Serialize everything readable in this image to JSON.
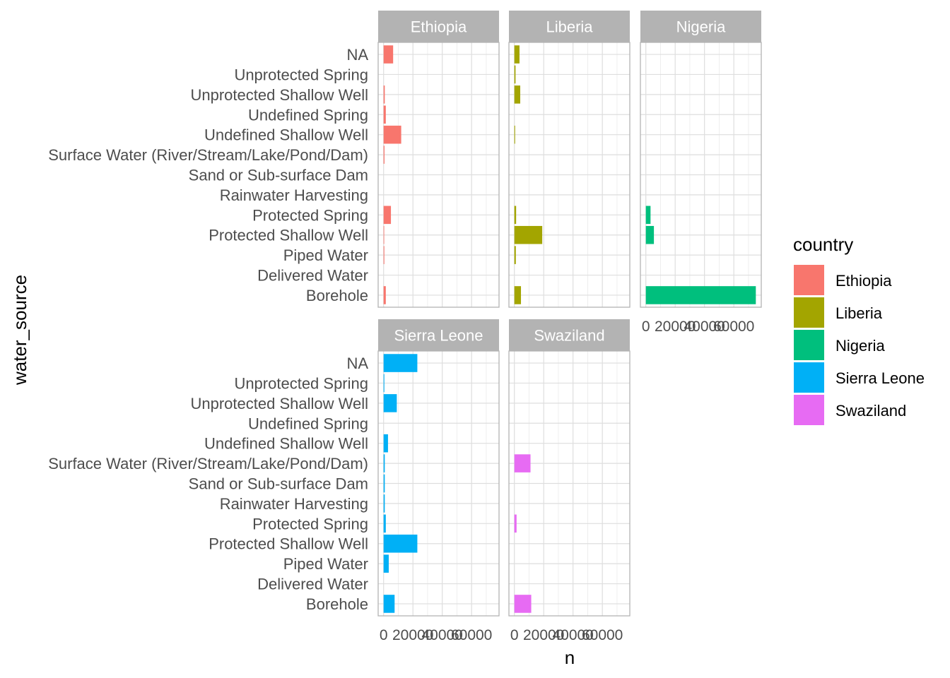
{
  "chart_data": {
    "type": "bar",
    "orientation": "horizontal",
    "facet_by": "country",
    "xlabel": "n",
    "ylabel": "water_source",
    "xlim": [
      0,
      75000
    ],
    "x_ticks": [
      0,
      20000,
      40000,
      60000
    ],
    "x_tick_labels": [
      "0",
      "20000",
      "40000",
      "60000"
    ],
    "grid": true,
    "legend_position": "right",
    "categories": [
      "Borehole",
      "Delivered Water",
      "Piped Water",
      "Protected Shallow Well",
      "Protected Spring",
      "Rainwater Harvesting",
      "Sand or Sub-surface Dam",
      "Surface Water (River/Stream/Lake/Pond/Dam)",
      "Undefined Shallow Well",
      "Undefined Spring",
      "Unprotected Shallow Well",
      "Unprotected Spring",
      "NA"
    ],
    "legend": {
      "title": "country",
      "items": [
        {
          "label": "Ethiopia",
          "color": "#F8766D"
        },
        {
          "label": "Liberia",
          "color": "#A3A500"
        },
        {
          "label": "Nigeria",
          "color": "#00BF7D"
        },
        {
          "label": "Sierra Leone",
          "color": "#00B0F6"
        },
        {
          "label": "Swaziland",
          "color": "#E76BF3"
        }
      ]
    },
    "series": [
      {
        "name": "Ethiopia",
        "color": "#F8766D",
        "values": [
          1500,
          0,
          500,
          400,
          5000,
          0,
          0,
          600,
          12000,
          1500,
          800,
          0,
          6500
        ]
      },
      {
        "name": "Liberia",
        "color": "#A3A500",
        "values": [
          4500,
          0,
          1000,
          19000,
          1200,
          0,
          0,
          0,
          500,
          0,
          4000,
          800,
          3500
        ]
      },
      {
        "name": "Nigeria",
        "color": "#00BF7D",
        "values": [
          75000,
          0,
          0,
          5500,
          3200,
          0,
          0,
          0,
          0,
          0,
          0,
          0,
          0
        ]
      },
      {
        "name": "Sierra Leone",
        "color": "#00B0F6",
        "values": [
          7500,
          0,
          3500,
          23000,
          1500,
          800,
          800,
          800,
          3000,
          0,
          9000,
          500,
          23000
        ]
      },
      {
        "name": "Swaziland",
        "color": "#E76BF3",
        "values": [
          11500,
          0,
          0,
          0,
          1500,
          0,
          0,
          11000,
          0,
          0,
          0,
          0,
          0
        ]
      }
    ]
  }
}
